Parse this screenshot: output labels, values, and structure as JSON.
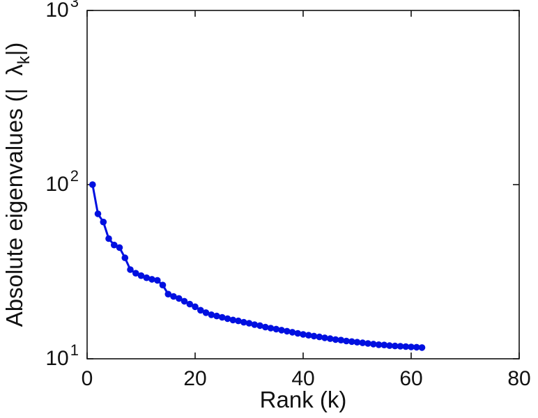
{
  "chart_data": {
    "type": "line",
    "title": "",
    "xlabel": "Rank (k)",
    "ylabel": "Absolute eigenvalues (| λ_k |)",
    "ylabel_prefix": "Absolute eigenvalues (|",
    "ylabel_symbol": "λ",
    "ylabel_sub": "k",
    "ylabel_suffix": "|)",
    "log_base_label": "10",
    "xlim": [
      0,
      80
    ],
    "ylim": [
      10,
      1000
    ],
    "yscale": "log",
    "xticks": [
      0,
      20,
      40,
      60,
      80
    ],
    "yticks": [
      10,
      100,
      1000
    ],
    "ytick_exponents": [
      1,
      2,
      3
    ],
    "grid": false,
    "legend": null,
    "line_color": "#0010e0",
    "axis_color": "#111111",
    "marker": "circle",
    "x": [
      1,
      2,
      3,
      4,
      5,
      6,
      7,
      8,
      9,
      10,
      11,
      12,
      13,
      14,
      15,
      16,
      17,
      18,
      19,
      20,
      21,
      22,
      23,
      24,
      25,
      26,
      27,
      28,
      29,
      30,
      31,
      32,
      33,
      34,
      35,
      36,
      37,
      38,
      39,
      40,
      41,
      42,
      43,
      44,
      45,
      46,
      47,
      48,
      49,
      50,
      51,
      52,
      53,
      54,
      55,
      56,
      57,
      58,
      59,
      60,
      61,
      62
    ],
    "values": [
      100,
      68,
      61,
      49,
      45,
      43.5,
      38,
      32.5,
      31,
      30,
      29.2,
      28.6,
      28.2,
      26.5,
      23.5,
      22.8,
      22.2,
      21.4,
      20.6,
      19.9,
      19.0,
      18.4,
      17.9,
      17.6,
      17.3,
      17.0,
      16.7,
      16.5,
      16.2,
      16.0,
      15.7,
      15.5,
      15.2,
      15.0,
      14.8,
      14.6,
      14.4,
      14.2,
      14.0,
      13.8,
      13.65,
      13.5,
      13.35,
      13.2,
      13.05,
      12.9,
      12.8,
      12.65,
      12.55,
      12.45,
      12.35,
      12.25,
      12.15,
      12.05,
      12.0,
      11.9,
      11.85,
      11.8,
      11.75,
      11.7,
      11.65,
      11.6
    ]
  }
}
